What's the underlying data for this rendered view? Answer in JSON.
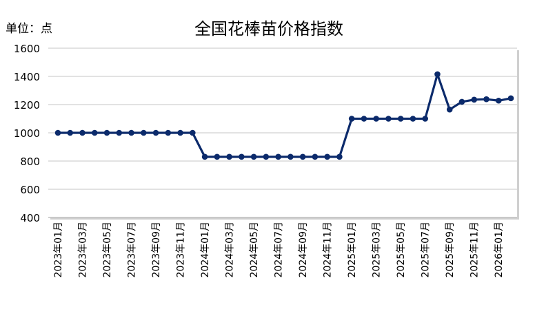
{
  "chart_data": {
    "type": "line",
    "title": "全国花棒苗价格指数",
    "unit_label": "单位：点",
    "xlabel": "",
    "ylabel": "",
    "ylim": [
      400,
      1600
    ],
    "yticks": [
      "1600",
      "1400",
      "1200",
      "1000",
      "800",
      "600",
      "400"
    ],
    "grid": true,
    "legend": "none",
    "line_color": "#0b2a6b",
    "x": [
      "2023年01月",
      "2023年02月",
      "2023年03月",
      "2023年04月",
      "2023年05月",
      "2023年06月",
      "2023年07月",
      "2023年08月",
      "2023年09月",
      "2023年10月",
      "2023年11月",
      "2023年12月",
      "2024年01月",
      "2024年02月",
      "2024年03月",
      "2024年04月",
      "2024年05月",
      "2024年06月",
      "2024年07月",
      "2024年08月",
      "2024年09月",
      "2024年10月",
      "2024年11月",
      "2024年12月",
      "2025年01月",
      "2025年02月",
      "2025年03月",
      "2025年04月",
      "2025年05月",
      "2025年06月",
      "2025年07月",
      "2025年08月",
      "2025年09月",
      "2025年10月",
      "2025年11月",
      "2025年12月",
      "2026年01月",
      "2026年02月"
    ],
    "xticks_shown": [
      "2023年01月",
      "2023年03月",
      "2023年05月",
      "2023年07月",
      "2023年09月",
      "2023年11月",
      "2024年01月",
      "2024年03月",
      "2024年05月",
      "2024年07月",
      "2024年09月",
      "2024年11月",
      "2025年01月",
      "2025年03月",
      "2025年05月",
      "2025年07月",
      "2025年09月",
      "2025年11月",
      "2026年01月"
    ],
    "values": [
      1000,
      1000,
      1000,
      1000,
      1000,
      1000,
      1000,
      1000,
      1000,
      1000,
      1000,
      1000,
      830,
      830,
      830,
      830,
      830,
      830,
      830,
      830,
      830,
      830,
      830,
      830,
      1100,
      1100,
      1100,
      1100,
      1100,
      1100,
      1100,
      1415,
      1165,
      1220,
      1235,
      1238,
      1228,
      1245
    ]
  }
}
